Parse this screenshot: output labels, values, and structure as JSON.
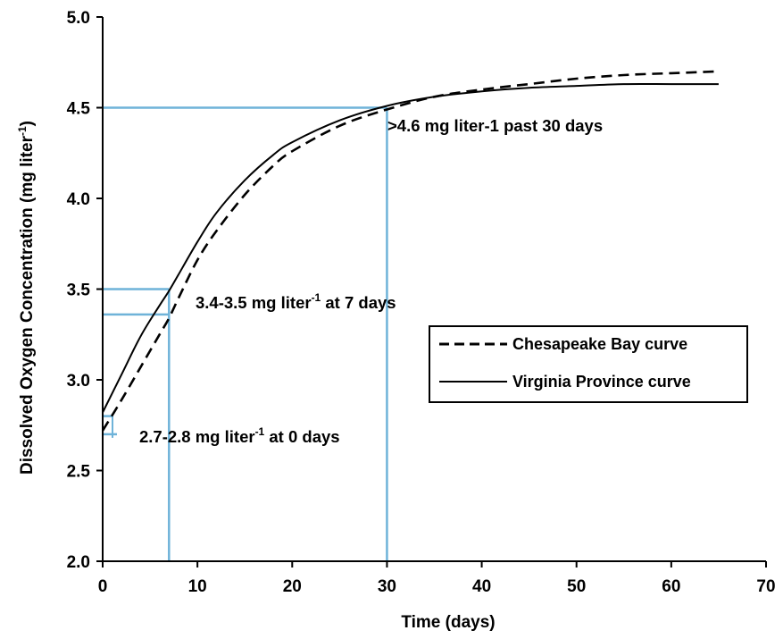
{
  "chart_data": {
    "type": "line",
    "xlabel": "Time (days)",
    "ylabel_main": "Dissolved Oxygen Concentration (mg liter",
    "ylabel_sup": "-1",
    "ylabel_close": ")",
    "xlim": [
      0,
      70
    ],
    "ylim": [
      2.0,
      5.0
    ],
    "xticks": [
      0,
      10,
      20,
      30,
      40,
      50,
      60,
      70
    ],
    "yticks": [
      "2.0",
      "2.5",
      "3.0",
      "3.5",
      "4.0",
      "4.5",
      "5.0"
    ],
    "grid": false,
    "legend_position": "right",
    "series": [
      {
        "name": "Chesapeake Bay curve",
        "style": "dashed",
        "x": [
          0,
          2,
          4,
          6,
          7,
          8,
          10,
          12,
          15,
          18,
          20,
          25,
          30,
          35,
          40,
          45,
          50,
          55,
          60,
          65
        ],
        "y": [
          2.72,
          2.89,
          3.07,
          3.25,
          3.34,
          3.45,
          3.66,
          3.82,
          4.02,
          4.18,
          4.26,
          4.4,
          4.49,
          4.56,
          4.6,
          4.63,
          4.66,
          4.68,
          4.69,
          4.7
        ]
      },
      {
        "name": "Virginia Province curve",
        "style": "solid",
        "x": [
          0,
          2,
          4,
          6,
          7,
          8,
          10,
          12,
          15,
          18,
          20,
          25,
          30,
          35,
          40,
          45,
          50,
          55,
          60,
          65
        ],
        "y": [
          2.82,
          3.03,
          3.24,
          3.41,
          3.49,
          3.58,
          3.76,
          3.92,
          4.1,
          4.24,
          4.31,
          4.43,
          4.51,
          4.56,
          4.59,
          4.61,
          4.62,
          4.63,
          4.63,
          4.63
        ]
      }
    ],
    "reference_lines": {
      "color": "#6fb3d9",
      "day0": {
        "x": 0,
        "y_low": 2.7,
        "y_high": 2.8
      },
      "day7": {
        "x": 7,
        "y_low": 3.36,
        "y_high": 3.5
      },
      "day30": {
        "x": 30,
        "y": 4.5
      }
    },
    "annotations": [
      {
        "id": "day0",
        "main": "2.7-2.8 mg liter",
        "sup": "-1",
        "tail": " at 0 days"
      },
      {
        "id": "day7",
        "main": "3.4-3.5 mg liter",
        "sup": "-1",
        "tail": " at 7 days"
      },
      {
        "id": "day30",
        "main": ">4.6 mg liter-1 past 30 days",
        "sup": "",
        "tail": ""
      }
    ]
  }
}
